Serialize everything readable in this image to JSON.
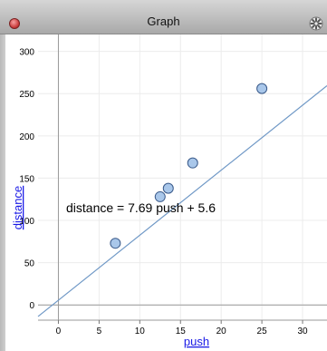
{
  "window": {
    "title": "Graph"
  },
  "icons": {
    "close": "close-button-icon",
    "gear": "gear-icon"
  },
  "colors": {
    "point_fill": "#a9c7ea",
    "point_stroke": "#3a5a8a",
    "line": "#6f98c6",
    "axis_link": "#1a1ae6"
  },
  "chart_data": {
    "type": "scatter",
    "xlabel": "push",
    "ylabel": "distance",
    "xlim": [
      -2.5,
      33
    ],
    "ylim": [
      -18,
      320
    ],
    "x_ticks": [
      0,
      5,
      10,
      15,
      20,
      25,
      30
    ],
    "y_ticks": [
      0,
      50,
      100,
      150,
      200,
      250,
      300
    ],
    "points": [
      {
        "x": 7,
        "y": 73
      },
      {
        "x": 12.5,
        "y": 128
      },
      {
        "x": 13.5,
        "y": 138
      },
      {
        "x": 16.5,
        "y": 168
      },
      {
        "x": 25,
        "y": 256
      }
    ],
    "fit_line": {
      "slope": 7.69,
      "intercept": 5.6
    },
    "equation": "distance = 7.69 push + 5.6"
  }
}
